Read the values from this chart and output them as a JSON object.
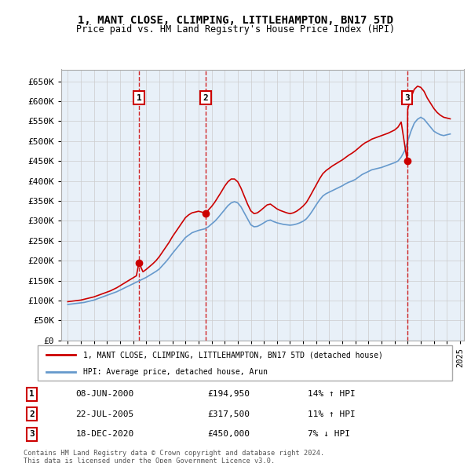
{
  "title": "1, MANT CLOSE, CLIMPING, LITTLEHAMPTON, BN17 5TD",
  "subtitle": "Price paid vs. HM Land Registry's House Price Index (HPI)",
  "legend_line1": "1, MANT CLOSE, CLIMPING, LITTLEHAMPTON, BN17 5TD (detached house)",
  "legend_line2": "HPI: Average price, detached house, Arun",
  "footer1": "Contains HM Land Registry data © Crown copyright and database right 2024.",
  "footer2": "This data is licensed under the Open Government Licence v3.0.",
  "transactions": [
    {
      "num": 1,
      "date": "08-JUN-2000",
      "price": "£194,950",
      "change": "14% ↑ HPI",
      "year": 2000.44,
      "price_val": 194950
    },
    {
      "num": 2,
      "date": "22-JUL-2005",
      "price": "£317,500",
      "change": "11% ↑ HPI",
      "year": 2005.55,
      "price_val": 317500
    },
    {
      "num": 3,
      "date": "18-DEC-2020",
      "price": "£450,000",
      "change": "7% ↓ HPI",
      "year": 2020.96,
      "price_val": 450000
    }
  ],
  "hpi_color": "#6699cc",
  "price_color": "#cc0000",
  "vline_color": "#cc0000",
  "plot_bg": "#e8f0f8",
  "grid_color": "#cccccc",
  "ylim": [
    0,
    680000
  ],
  "yticks": [
    0,
    50000,
    100000,
    150000,
    200000,
    250000,
    300000,
    350000,
    400000,
    450000,
    500000,
    550000,
    600000,
    650000
  ],
  "xlim": [
    1994.5,
    2025.3
  ],
  "xtick_start": 1995,
  "xtick_end": 2025,
  "hpi_data_x": [
    1995,
    1995.25,
    1995.5,
    1995.75,
    1996,
    1996.25,
    1996.5,
    1996.75,
    1997,
    1997.25,
    1997.5,
    1997.75,
    1998,
    1998.25,
    1998.5,
    1998.75,
    1999,
    1999.25,
    1999.5,
    1999.75,
    2000,
    2000.25,
    2000.5,
    2000.75,
    2001,
    2001.25,
    2001.5,
    2001.75,
    2002,
    2002.25,
    2002.5,
    2002.75,
    2003,
    2003.25,
    2003.5,
    2003.75,
    2004,
    2004.25,
    2004.5,
    2004.75,
    2005,
    2005.25,
    2005.5,
    2005.75,
    2006,
    2006.25,
    2006.5,
    2006.75,
    2007,
    2007.25,
    2007.5,
    2007.75,
    2008,
    2008.25,
    2008.5,
    2008.75,
    2009,
    2009.25,
    2009.5,
    2009.75,
    2010,
    2010.25,
    2010.5,
    2010.75,
    2011,
    2011.25,
    2011.5,
    2011.75,
    2012,
    2012.25,
    2012.5,
    2012.75,
    2013,
    2013.25,
    2013.5,
    2013.75,
    2014,
    2014.25,
    2014.5,
    2014.75,
    2015,
    2015.25,
    2015.5,
    2015.75,
    2016,
    2016.25,
    2016.5,
    2016.75,
    2017,
    2017.25,
    2017.5,
    2017.75,
    2018,
    2018.25,
    2018.5,
    2018.75,
    2019,
    2019.25,
    2019.5,
    2019.75,
    2020,
    2020.25,
    2020.5,
    2020.75,
    2021,
    2021.25,
    2021.5,
    2021.75,
    2022,
    2022.25,
    2022.5,
    2022.75,
    2023,
    2023.25,
    2023.5,
    2023.75,
    2024,
    2024.25
  ],
  "hpi_data_y": [
    90000,
    91000,
    92000,
    93000,
    94000,
    95000,
    97000,
    99000,
    101000,
    104000,
    107000,
    110000,
    113000,
    116000,
    119000,
    122000,
    126000,
    130000,
    134000,
    138000,
    142000,
    146000,
    150000,
    154000,
    158000,
    163000,
    168000,
    173000,
    179000,
    188000,
    197000,
    207000,
    218000,
    228000,
    238000,
    248000,
    258000,
    264000,
    270000,
    273000,
    276000,
    278000,
    280000,
    285000,
    292000,
    299000,
    308000,
    318000,
    328000,
    338000,
    345000,
    348000,
    345000,
    335000,
    320000,
    305000,
    290000,
    285000,
    286000,
    290000,
    295000,
    300000,
    302000,
    298000,
    295000,
    293000,
    291000,
    290000,
    289000,
    290000,
    292000,
    295000,
    299000,
    305000,
    315000,
    327000,
    340000,
    352000,
    362000,
    368000,
    372000,
    376000,
    380000,
    384000,
    388000,
    393000,
    397000,
    400000,
    404000,
    410000,
    416000,
    420000,
    424000,
    428000,
    430000,
    432000,
    434000,
    437000,
    440000,
    443000,
    446000,
    450000,
    460000,
    475000,
    500000,
    525000,
    545000,
    555000,
    560000,
    555000,
    545000,
    535000,
    525000,
    520000,
    516000,
    514000,
    516000,
    518000
  ],
  "price_data_x": [
    1995,
    1995.25,
    1995.5,
    1995.75,
    1996,
    1996.25,
    1996.5,
    1996.75,
    1997,
    1997.25,
    1997.5,
    1997.75,
    1998,
    1998.25,
    1998.5,
    1998.75,
    1999,
    1999.25,
    1999.5,
    1999.75,
    2000,
    2000.25,
    2000.44,
    2000.75,
    2001,
    2001.25,
    2001.5,
    2001.75,
    2002,
    2002.25,
    2002.5,
    2002.75,
    2003,
    2003.25,
    2003.5,
    2003.75,
    2004,
    2004.25,
    2004.5,
    2004.75,
    2005,
    2005.25,
    2005.55,
    2005.75,
    2006,
    2006.25,
    2006.5,
    2006.75,
    2007,
    2007.25,
    2007.5,
    2007.75,
    2008,
    2008.25,
    2008.5,
    2008.75,
    2009,
    2009.25,
    2009.5,
    2009.75,
    2010,
    2010.25,
    2010.5,
    2010.75,
    2011,
    2011.25,
    2011.5,
    2011.75,
    2012,
    2012.25,
    2012.5,
    2012.75,
    2013,
    2013.25,
    2013.5,
    2013.75,
    2014,
    2014.25,
    2014.5,
    2014.75,
    2015,
    2015.25,
    2015.5,
    2015.75,
    2016,
    2016.25,
    2016.5,
    2016.75,
    2017,
    2017.25,
    2017.5,
    2017.75,
    2018,
    2018.25,
    2018.5,
    2018.75,
    2019,
    2019.25,
    2019.5,
    2019.75,
    2020,
    2020.25,
    2020.5,
    2020.96,
    2021,
    2021.25,
    2021.5,
    2021.75,
    2022,
    2022.25,
    2022.5,
    2022.75,
    2023,
    2023.25,
    2023.5,
    2023.75,
    2024,
    2024.25
  ],
  "price_data_y": [
    97000,
    98000,
    99000,
    100000,
    101000,
    103000,
    105000,
    107000,
    109000,
    112000,
    115000,
    118000,
    121000,
    124000,
    128000,
    132000,
    137000,
    142000,
    147000,
    152000,
    157000,
    162000,
    194950,
    172000,
    178000,
    185000,
    192000,
    200000,
    210000,
    222000,
    234000,
    246000,
    260000,
    272000,
    284000,
    296000,
    308000,
    315000,
    320000,
    322000,
    324000,
    322000,
    317500,
    327000,
    336000,
    347000,
    360000,
    373000,
    387000,
    398000,
    405000,
    405000,
    398000,
    382000,
    362000,
    342000,
    325000,
    318000,
    320000,
    326000,
    333000,
    340000,
    342000,
    336000,
    330000,
    326000,
    323000,
    320000,
    318000,
    320000,
    324000,
    330000,
    337000,
    346000,
    360000,
    375000,
    390000,
    405000,
    418000,
    426000,
    432000,
    438000,
    443000,
    448000,
    453000,
    459000,
    465000,
    470000,
    476000,
    483000,
    490000,
    496000,
    500000,
    505000,
    508000,
    511000,
    514000,
    517000,
    520000,
    524000,
    528000,
    535000,
    548000,
    450000,
    580000,
    610000,
    630000,
    638000,
    635000,
    625000,
    608000,
    595000,
    582000,
    572000,
    565000,
    560000,
    558000,
    556000
  ]
}
